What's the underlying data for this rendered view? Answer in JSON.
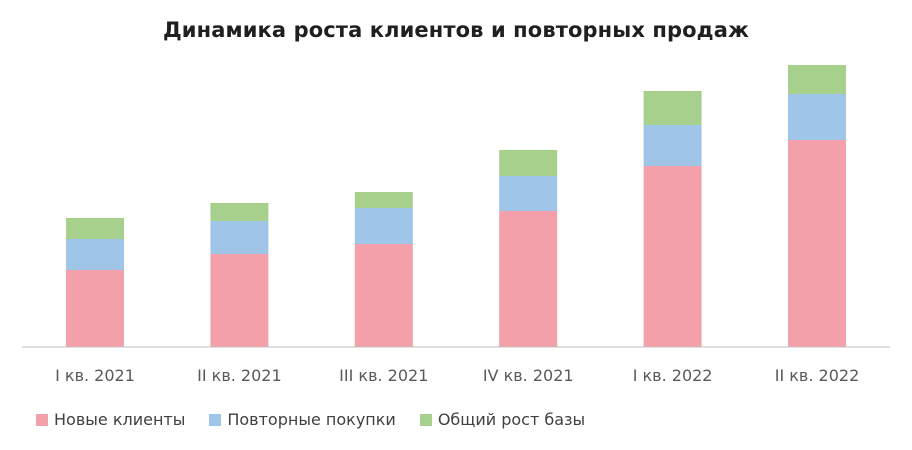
{
  "chart_data": {
    "type": "bar",
    "stacked": true,
    "title": "Динамика роста клиентов и повторных продаж",
    "xlabel": "",
    "ylabel": "",
    "grid": false,
    "legend_position": "bottom-left",
    "categories": [
      "I кв. 2021",
      "II кв. 2021",
      "III кв. 2021",
      "IV кв. 2021",
      "I кв. 2022",
      "II кв. 2022"
    ],
    "series": [
      {
        "name": "Новые клиенты",
        "color": "#f4a0aa",
        "values": [
          77,
          93,
          103,
          136,
          181,
          207
        ]
      },
      {
        "name": "Повторные покупки",
        "color": "#9fc5e8",
        "values": [
          31,
          33,
          36,
          35,
          41,
          46
        ]
      },
      {
        "name": "Общий рост базы",
        "color": "#a8d08d",
        "values": [
          21,
          18,
          16,
          26,
          34,
          29
        ]
      }
    ],
    "ylim": [
      0,
      290
    ]
  }
}
